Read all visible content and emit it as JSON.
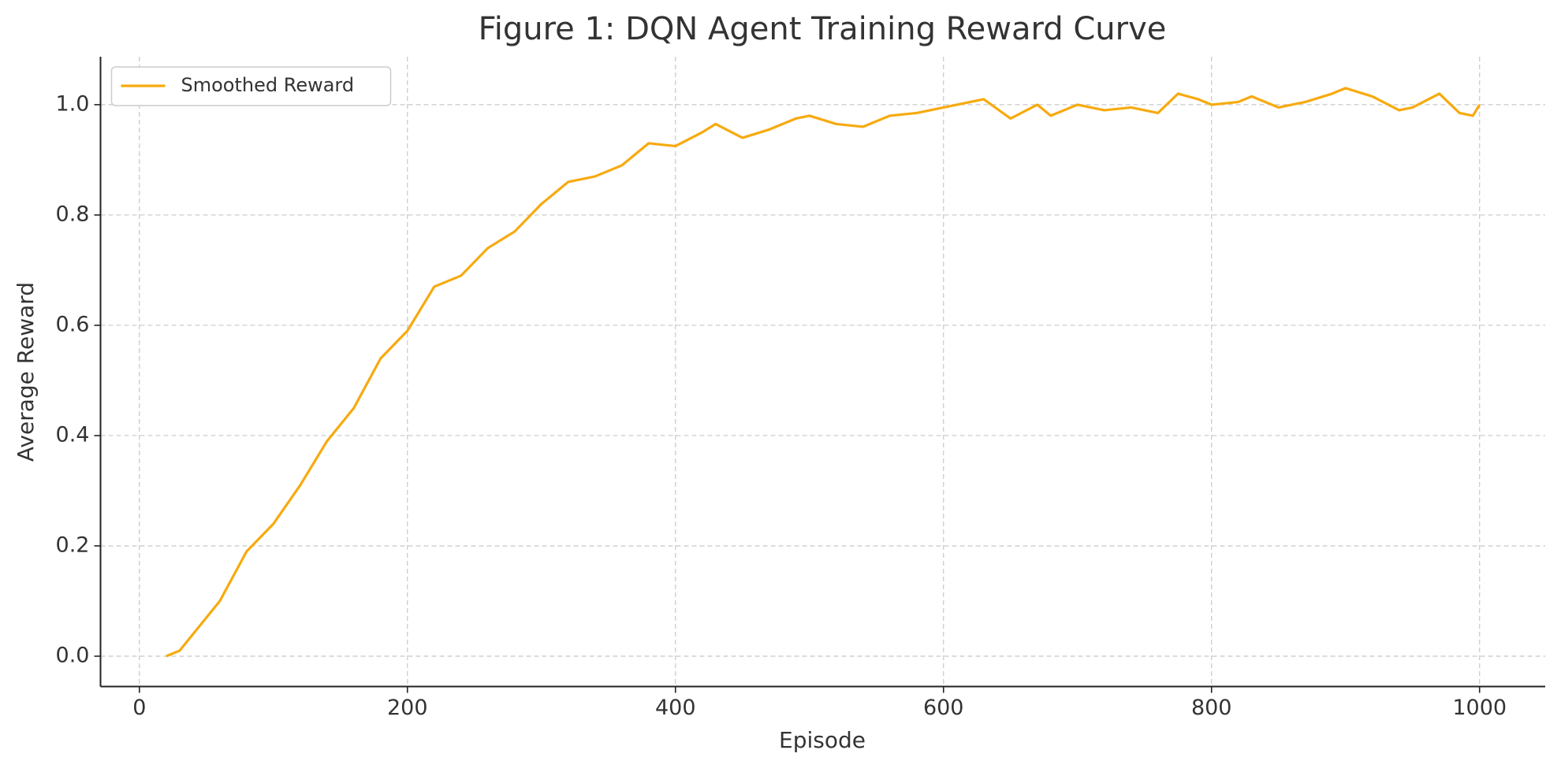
{
  "chart_data": {
    "type": "line",
    "title": "Figure 1: DQN Agent Training Reward Curve",
    "x_label": "Episode",
    "y_label": "Average Reward",
    "x": [
      20,
      30,
      40,
      60,
      80,
      100,
      120,
      140,
      160,
      180,
      200,
      220,
      240,
      260,
      280,
      300,
      320,
      340,
      360,
      380,
      400,
      420,
      430,
      450,
      470,
      490,
      500,
      520,
      540,
      560,
      580,
      600,
      620,
      630,
      650,
      670,
      680,
      700,
      720,
      740,
      760,
      775,
      790,
      800,
      820,
      830,
      850,
      870,
      890,
      900,
      920,
      940,
      950,
      970,
      985,
      995,
      1000
    ],
    "series": [
      {
        "name": "Smoothed Reward",
        "color": "#f7aa0f",
        "values": [
          0,
          0.01,
          0.04,
          0.1,
          0.19,
          0.24,
          0.31,
          0.39,
          0.45,
          0.54,
          0.59,
          0.67,
          0.69,
          0.74,
          0.77,
          0.82,
          0.86,
          0.87,
          0.89,
          0.93,
          0.925,
          0.95,
          0.965,
          0.94,
          0.955,
          0.975,
          0.98,
          0.965,
          0.96,
          0.98,
          0.985,
          0.995,
          1.005,
          1.01,
          0.975,
          1.0,
          0.98,
          1.0,
          0.99,
          0.995,
          0.985,
          1.02,
          1.01,
          1.0,
          1.005,
          1.015,
          0.995,
          1.005,
          1.02,
          1.03,
          1.015,
          0.99,
          0.995,
          1.02,
          0.985,
          0.98,
          1.0
        ]
      }
    ],
    "xlim": [
      -29,
      1049
    ],
    "ylim": [
      -0.055,
      1.087
    ],
    "xticks": [
      0,
      200,
      400,
      600,
      800,
      1000
    ],
    "yticks": [
      {
        "value": 0,
        "label": "0.0"
      },
      0.2,
      0.4,
      0.6,
      0.8,
      {
        "value": 1,
        "label": "1.0"
      }
    ],
    "grid": true,
    "legend": "upper left"
  }
}
